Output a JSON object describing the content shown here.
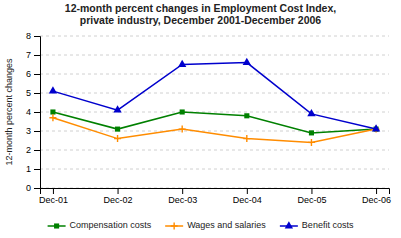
{
  "chart_data": {
    "type": "line",
    "title": "12-month percent changes in Employment Cost Index,\nprivate industry, December 2001-December 2006",
    "y_label": "12-month percent changes",
    "categories": [
      "Dec-01",
      "Dec-02",
      "Dec-03",
      "Dec-04",
      "Dec-05",
      "Dec-06"
    ],
    "series": [
      {
        "name": "Compensation costs",
        "color": "#008000",
        "marker": "square",
        "values": [
          4.0,
          3.1,
          4.0,
          3.8,
          2.9,
          3.1
        ]
      },
      {
        "name": "Wages and salaries",
        "color": "#FF8C00",
        "marker": "plus",
        "values": [
          3.7,
          2.6,
          3.1,
          2.6,
          2.4,
          3.1
        ]
      },
      {
        "name": "Benefit costs",
        "color": "#0000CD",
        "marker": "triangle",
        "values": [
          5.1,
          4.1,
          6.5,
          6.6,
          3.9,
          3.1
        ]
      }
    ],
    "ylim": [
      0,
      8
    ],
    "yticks": [
      0,
      1,
      2,
      3,
      4,
      5,
      6,
      7,
      8
    ],
    "grid": true,
    "legend": "bottom"
  }
}
